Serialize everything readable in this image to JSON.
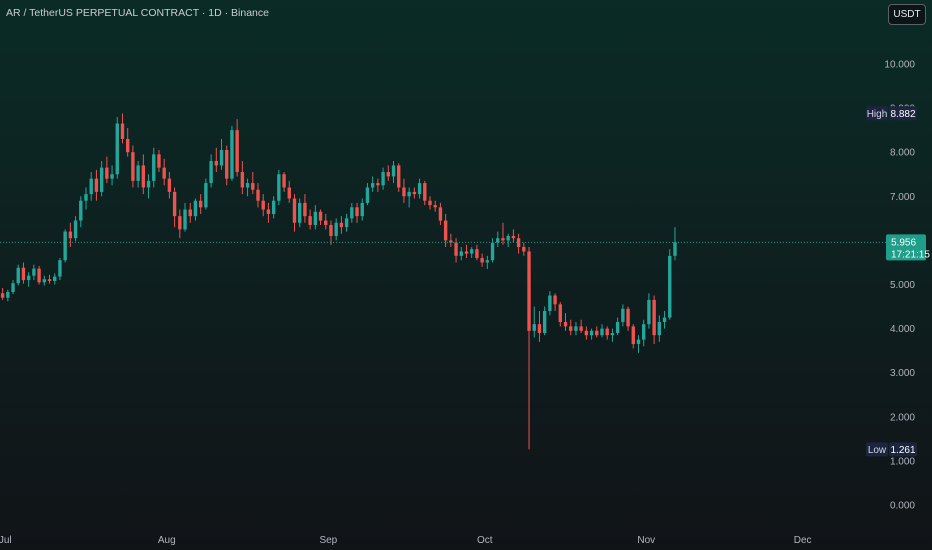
{
  "header": {
    "title": "AR / TetherUS PERPETUAL CONTRACT · 1D · Binance",
    "currency": "USDT"
  },
  "colors": {
    "up": "#26a69a",
    "down": "#ef5350",
    "last_price_bg": "#1f9e89",
    "high_low_bg": "#1c2540"
  },
  "chart_data": {
    "type": "candlestick",
    "title": "AR / TetherUS PERPETUAL CONTRACT · 1D · Binance",
    "y_axis": {
      "range": [
        0,
        11
      ],
      "ticks": [
        "0.000",
        "1.000",
        "2.000",
        "3.000",
        "4.000",
        "5.000",
        "6.000",
        "7.000",
        "8.000",
        "9.000",
        "10.000"
      ]
    },
    "x_axis": {
      "range": [
        "2025-06-30",
        "2025-12-12"
      ],
      "ticks": [
        {
          "label": "Jul",
          "date": "2025-07-01"
        },
        {
          "label": "Aug",
          "date": "2025-08-01"
        },
        {
          "label": "Sep",
          "date": "2025-09-01"
        },
        {
          "label": "Oct",
          "date": "2025-10-01"
        },
        {
          "label": "Nov",
          "date": "2025-11-01"
        },
        {
          "label": "Dec",
          "date": "2025-12-01"
        }
      ]
    },
    "high": {
      "label": "High",
      "value": "8.882"
    },
    "low": {
      "label": "Low",
      "value": "1.261"
    },
    "last": {
      "value": "5.956",
      "countdown": "17:21:15"
    },
    "ohlc": [
      [
        4.8,
        4.92,
        4.65,
        4.7
      ],
      [
        4.7,
        4.88,
        4.62,
        4.83
      ],
      [
        4.83,
        5.1,
        4.78,
        5.03
      ],
      [
        5.03,
        5.45,
        4.98,
        5.38
      ],
      [
        5.38,
        5.5,
        5.02,
        5.1
      ],
      [
        5.1,
        5.28,
        4.95,
        5.2
      ],
      [
        5.2,
        5.45,
        5.1,
        5.36
      ],
      [
        5.36,
        5.42,
        5.0,
        5.05
      ],
      [
        5.05,
        5.2,
        4.98,
        5.12
      ],
      [
        5.12,
        5.22,
        5.02,
        5.08
      ],
      [
        5.08,
        5.25,
        5.0,
        5.18
      ],
      [
        5.18,
        5.6,
        5.1,
        5.55
      ],
      [
        5.55,
        6.25,
        5.5,
        6.2
      ],
      [
        6.2,
        6.4,
        5.85,
        6.05
      ],
      [
        6.05,
        6.55,
        5.98,
        6.45
      ],
      [
        6.45,
        7.0,
        6.3,
        6.9
      ],
      [
        6.9,
        7.2,
        6.7,
        7.05
      ],
      [
        7.05,
        7.55,
        6.9,
        7.4
      ],
      [
        7.4,
        7.6,
        6.9,
        7.1
      ],
      [
        7.1,
        7.8,
        7.0,
        7.65
      ],
      [
        7.65,
        7.9,
        7.3,
        7.4
      ],
      [
        7.4,
        7.7,
        7.25,
        7.5
      ],
      [
        7.5,
        8.8,
        7.4,
        8.65
      ],
      [
        8.65,
        8.88,
        8.2,
        8.3
      ],
      [
        8.3,
        8.55,
        7.9,
        8.0
      ],
      [
        8.0,
        8.15,
        7.2,
        7.35
      ],
      [
        7.35,
        7.8,
        7.2,
        7.7
      ],
      [
        7.7,
        7.95,
        7.05,
        7.2
      ],
      [
        7.2,
        7.5,
        6.95,
        7.35
      ],
      [
        7.35,
        8.1,
        7.2,
        7.95
      ],
      [
        7.95,
        8.05,
        7.55,
        7.65
      ],
      [
        7.65,
        7.85,
        7.25,
        7.4
      ],
      [
        7.4,
        7.55,
        6.95,
        7.1
      ],
      [
        7.1,
        7.2,
        6.3,
        6.55
      ],
      [
        6.55,
        6.7,
        6.05,
        6.25
      ],
      [
        6.25,
        6.85,
        6.2,
        6.7
      ],
      [
        6.7,
        6.85,
        6.4,
        6.55
      ],
      [
        6.55,
        6.95,
        6.45,
        6.9
      ],
      [
        6.9,
        7.05,
        6.6,
        6.75
      ],
      [
        6.75,
        7.4,
        6.7,
        7.3
      ],
      [
        7.3,
        7.95,
        7.2,
        7.8
      ],
      [
        7.8,
        8.1,
        7.55,
        7.7
      ],
      [
        7.7,
        8.3,
        7.6,
        8.05
      ],
      [
        8.05,
        8.15,
        7.25,
        7.4
      ],
      [
        7.4,
        8.6,
        7.35,
        8.5
      ],
      [
        8.5,
        8.75,
        7.45,
        7.55
      ],
      [
        7.55,
        7.8,
        7.05,
        7.2
      ],
      [
        7.2,
        7.4,
        7.0,
        7.3
      ],
      [
        7.3,
        7.55,
        7.05,
        7.15
      ],
      [
        7.15,
        7.3,
        6.75,
        6.9
      ],
      [
        6.9,
        7.05,
        6.55,
        6.7
      ],
      [
        6.7,
        6.85,
        6.4,
        6.6
      ],
      [
        6.6,
        7.0,
        6.5,
        6.9
      ],
      [
        6.9,
        7.6,
        6.8,
        7.5
      ],
      [
        7.5,
        7.55,
        7.1,
        7.2
      ],
      [
        7.2,
        7.35,
        6.85,
        6.95
      ],
      [
        6.95,
        7.05,
        6.2,
        6.4
      ],
      [
        6.4,
        6.95,
        6.3,
        6.85
      ],
      [
        6.85,
        7.05,
        6.4,
        6.55
      ],
      [
        6.55,
        6.7,
        6.25,
        6.35
      ],
      [
        6.35,
        6.8,
        6.25,
        6.65
      ],
      [
        6.65,
        6.7,
        6.35,
        6.45
      ],
      [
        6.45,
        6.6,
        6.25,
        6.35
      ],
      [
        6.35,
        6.45,
        5.9,
        6.1
      ],
      [
        6.1,
        6.5,
        6.0,
        6.4
      ],
      [
        6.4,
        6.55,
        6.15,
        6.3
      ],
      [
        6.3,
        6.6,
        6.2,
        6.5
      ],
      [
        6.5,
        6.85,
        6.4,
        6.75
      ],
      [
        6.75,
        6.85,
        6.4,
        6.55
      ],
      [
        6.55,
        6.95,
        6.45,
        6.85
      ],
      [
        6.85,
        7.3,
        6.8,
        7.2
      ],
      [
        7.2,
        7.45,
        7.1,
        7.3
      ],
      [
        7.3,
        7.4,
        7.1,
        7.25
      ],
      [
        7.25,
        7.65,
        7.15,
        7.55
      ],
      [
        7.55,
        7.7,
        7.35,
        7.45
      ],
      [
        7.45,
        7.8,
        7.3,
        7.7
      ],
      [
        7.7,
        7.75,
        7.1,
        7.2
      ],
      [
        7.2,
        7.4,
        6.85,
        7.0
      ],
      [
        7.0,
        7.2,
        6.75,
        7.1
      ],
      [
        7.1,
        7.2,
        6.95,
        7.05
      ],
      [
        7.05,
        7.4,
        6.95,
        7.3
      ],
      [
        7.3,
        7.35,
        6.8,
        6.9
      ],
      [
        6.9,
        7.0,
        6.7,
        6.8
      ],
      [
        6.8,
        6.9,
        6.65,
        6.75
      ],
      [
        6.75,
        6.85,
        6.35,
        6.45
      ],
      [
        6.45,
        6.6,
        5.85,
        6.0
      ],
      [
        6.0,
        6.15,
        5.85,
        5.95
      ],
      [
        5.95,
        6.05,
        5.5,
        5.65
      ],
      [
        5.65,
        5.85,
        5.55,
        5.75
      ],
      [
        5.75,
        5.9,
        5.6,
        5.7
      ],
      [
        5.7,
        5.85,
        5.6,
        5.8
      ],
      [
        5.8,
        5.9,
        5.55,
        5.6
      ],
      [
        5.6,
        5.7,
        5.4,
        5.5
      ],
      [
        5.5,
        5.65,
        5.35,
        5.55
      ],
      [
        5.55,
        6.05,
        5.5,
        5.95
      ],
      [
        5.95,
        6.2,
        5.85,
        6.05
      ],
      [
        6.05,
        6.4,
        5.9,
        6.0
      ],
      [
        6.0,
        6.15,
        5.85,
        6.1
      ],
      [
        6.1,
        6.25,
        5.95,
        6.05
      ],
      [
        6.05,
        6.15,
        5.7,
        5.85
      ],
      [
        5.85,
        5.95,
        5.65,
        5.75
      ],
      [
        5.75,
        5.85,
        1.26,
        3.95
      ],
      [
        3.95,
        4.5,
        3.8,
        4.1
      ],
      [
        4.1,
        4.4,
        3.7,
        3.9
      ],
      [
        3.9,
        4.5,
        3.85,
        4.4
      ],
      [
        4.4,
        4.85,
        4.3,
        4.75
      ],
      [
        4.75,
        4.8,
        4.4,
        4.55
      ],
      [
        4.55,
        4.6,
        4.05,
        4.15
      ],
      [
        4.15,
        4.35,
        3.95,
        4.05
      ],
      [
        4.05,
        4.2,
        3.85,
        3.95
      ],
      [
        3.95,
        4.15,
        3.85,
        4.05
      ],
      [
        4.05,
        4.2,
        3.9,
        3.95
      ],
      [
        3.95,
        4.05,
        3.75,
        3.85
      ],
      [
        3.85,
        4.0,
        3.75,
        3.95
      ],
      [
        3.95,
        4.05,
        3.8,
        3.85
      ],
      [
        3.85,
        4.1,
        3.8,
        4.0
      ],
      [
        4.0,
        4.05,
        3.75,
        3.85
      ],
      [
        3.85,
        4.0,
        3.7,
        3.9
      ],
      [
        3.9,
        4.25,
        3.85,
        4.15
      ],
      [
        4.15,
        4.55,
        4.05,
        4.45
      ],
      [
        4.45,
        4.5,
        3.95,
        4.05
      ],
      [
        4.05,
        4.1,
        3.55,
        3.65
      ],
      [
        3.65,
        3.85,
        3.45,
        3.75
      ],
      [
        3.75,
        4.2,
        3.6,
        4.1
      ],
      [
        4.1,
        4.8,
        4.0,
        4.65
      ],
      [
        4.65,
        4.75,
        3.65,
        3.85
      ],
      [
        3.85,
        4.3,
        3.7,
        4.15
      ],
      [
        4.15,
        4.4,
        4.0,
        4.25
      ],
      [
        4.25,
        5.8,
        4.2,
        5.65
      ],
      [
        5.65,
        6.3,
        5.55,
        5.96
      ]
    ]
  }
}
